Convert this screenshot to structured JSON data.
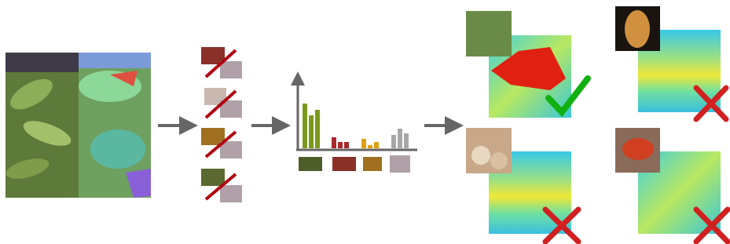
{
  "histogram": {
    "groups": [
      {
        "color": "#7a9a1c",
        "values": [
          57,
          42,
          49
        ]
      },
      {
        "color": "#a8282a",
        "values": [
          14,
          8,
          8
        ]
      },
      {
        "color": "#e0a010",
        "values": [
          12,
          4,
          8
        ]
      },
      {
        "color": "#a8a8a8",
        "values": [
          17,
          25,
          19
        ]
      }
    ]
  }
}
